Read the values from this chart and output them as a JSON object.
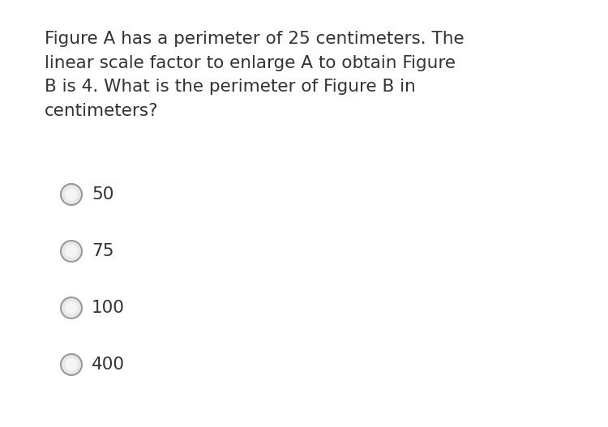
{
  "background_color": "#ffffff",
  "question_text": "Figure A has a perimeter of 25 centimeters. The\nlinear scale factor to enlarge A to obtain Figure\nB is 4. What is the perimeter of Figure B in\ncentimeters?",
  "options": [
    "50",
    "75",
    "100",
    "400"
  ],
  "question_font_size": 15.5,
  "option_font_size": 15.5,
  "text_color": "#333333",
  "radio_edge_color": "#999999",
  "radio_face_color": "#e8e8e8",
  "radio_center_color": "#f5f5f5",
  "fig_width": 7.5,
  "fig_height": 5.27,
  "dpi": 100
}
